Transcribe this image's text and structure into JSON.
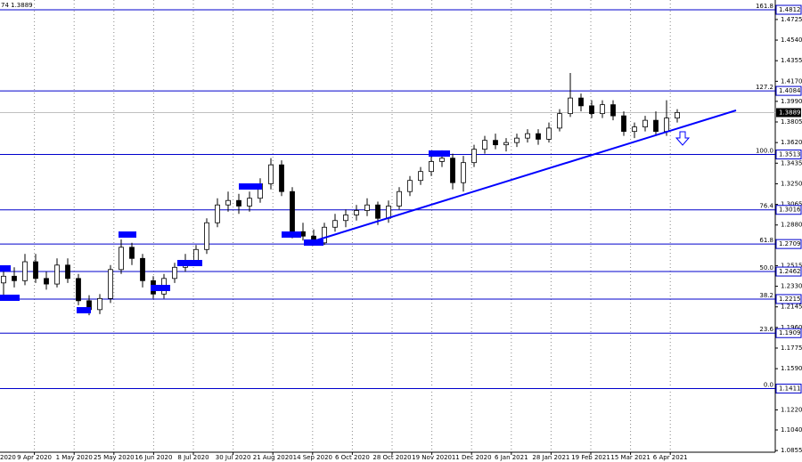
{
  "chart_data": {
    "type": "candlestick",
    "header": "74 1.3889",
    "x_labels": [
      "2020",
      "9 Apr 2020",
      "1 May 2020",
      "25 May 2020",
      "16 Jun 2020",
      "8 Jul 2020",
      "30 Jul 2020",
      "21 Aug 2020",
      "14 Sep 2020",
      "6 Oct 2020",
      "28 Oct 2020",
      "19 Nov 2020",
      "11 Dec 2020",
      "6 Jan 2021",
      "28 Jan 2021",
      "19 Feb 2021",
      "15 Mar 2021",
      "6 Apr 2021"
    ],
    "ylim": [
      1.084,
      1.49
    ],
    "yticks": [
      1.4725,
      {
        "value": 1.454,
        "label": "1.4540"
      },
      1.4355,
      {
        "value": 1.417,
        "label": "1.4170"
      },
      {
        "value": 1.399,
        "label": "1.3990"
      },
      1.3805,
      {
        "value": 1.362,
        "label": "1.3620"
      },
      1.3435,
      {
        "value": 1.325,
        "label": "1.3250"
      },
      1.3065,
      {
        "value": 1.288,
        "label": "1.2880"
      },
      1.2515,
      {
        "value": 1.233,
        "label": "1.2330"
      },
      1.2145,
      {
        "value": 1.196,
        "label": "1.1960"
      },
      1.1775,
      {
        "value": 1.159,
        "label": "1.1590"
      },
      {
        "value": 1.122,
        "label": "1.1220"
      },
      {
        "value": 1.104,
        "label": "1.1040"
      },
      1.0855
    ],
    "levels": [
      {
        "name": "161.8",
        "value": 1.4812
      },
      {
        "name": "127.2",
        "value": 1.4084
      },
      {
        "name": "100.0",
        "value": 1.3513
      },
      {
        "name": "76.4",
        "value": 1.3016
      },
      {
        "name": "61.8",
        "value": 1.2709
      },
      {
        "name": "50.0",
        "value": 1.2462
      },
      {
        "name": "38.2",
        "value": 1.2215
      },
      {
        "name": "23.6",
        "value": 1.1909
      },
      {
        "name": "0.0",
        "value": 1.1411
      }
    ],
    "last_price": 1.3889,
    "open": [
      1.236,
      1.242,
      1.238,
      1.255,
      1.24,
      1.235,
      1.252,
      1.24,
      1.22,
      1.212,
      1.222,
      1.248,
      1.268,
      1.258,
      1.238,
      1.226,
      1.24,
      1.25,
      1.256,
      1.266,
      1.29,
      1.306,
      1.31,
      1.305,
      1.312,
      1.325,
      1.342,
      1.318,
      1.282,
      1.278,
      1.272,
      1.286,
      1.292,
      1.297,
      1.301,
      1.306,
      1.294,
      1.305,
      1.318,
      1.328,
      1.336,
      1.345,
      1.348,
      1.326,
      1.344,
      1.356,
      1.364,
      1.36,
      1.362,
      1.366,
      1.37,
      1.365,
      1.375,
      1.388,
      1.402,
      1.395,
      1.388,
      1.396,
      1.386,
      1.372,
      1.376,
      1.382,
      1.372,
      1.384
    ],
    "high": [
      1.248,
      1.25,
      1.262,
      1.262,
      1.246,
      1.258,
      1.258,
      1.244,
      1.225,
      1.226,
      1.252,
      1.275,
      1.272,
      1.262,
      1.242,
      1.244,
      1.254,
      1.262,
      1.27,
      1.294,
      1.312,
      1.318,
      1.316,
      1.318,
      1.33,
      1.348,
      1.346,
      1.322,
      1.29,
      1.284,
      1.29,
      1.298,
      1.302,
      1.306,
      1.312,
      1.309,
      1.31,
      1.322,
      1.332,
      1.34,
      1.35,
      1.355,
      1.352,
      1.35,
      1.36,
      1.368,
      1.37,
      1.366,
      1.37,
      1.374,
      1.374,
      1.38,
      1.392,
      1.4245,
      1.406,
      1.4,
      1.4,
      1.4,
      1.39,
      1.38,
      1.386,
      1.39,
      1.4,
      1.392
    ],
    "low": [
      1.225,
      1.232,
      1.234,
      1.236,
      1.23,
      1.232,
      1.236,
      1.216,
      1.207,
      1.208,
      1.218,
      1.244,
      1.252,
      1.232,
      1.222,
      1.222,
      1.236,
      1.246,
      1.252,
      1.262,
      1.286,
      1.3,
      1.298,
      1.3,
      1.308,
      1.32,
      1.314,
      1.276,
      1.274,
      1.2695,
      1.27,
      1.282,
      1.286,
      1.292,
      1.296,
      1.288,
      1.29,
      1.302,
      1.314,
      1.324,
      1.332,
      1.34,
      1.32,
      1.318,
      1.34,
      1.352,
      1.356,
      1.354,
      1.358,
      1.362,
      1.36,
      1.362,
      1.372,
      1.385,
      1.39,
      1.384,
      1.384,
      1.382,
      1.368,
      1.366,
      1.372,
      1.368,
      1.368,
      1.38
    ],
    "close": [
      1.242,
      1.238,
      1.255,
      1.24,
      1.235,
      1.252,
      1.24,
      1.22,
      1.212,
      1.222,
      1.248,
      1.268,
      1.258,
      1.238,
      1.226,
      1.24,
      1.25,
      1.256,
      1.266,
      1.29,
      1.306,
      1.31,
      1.305,
      1.312,
      1.325,
      1.342,
      1.318,
      1.282,
      1.278,
      1.272,
      1.286,
      1.292,
      1.297,
      1.301,
      1.306,
      1.294,
      1.305,
      1.318,
      1.328,
      1.336,
      1.345,
      1.348,
      1.326,
      1.344,
      1.356,
      1.364,
      1.36,
      1.362,
      1.366,
      1.37,
      1.365,
      1.375,
      1.388,
      1.402,
      1.395,
      1.388,
      1.396,
      1.386,
      1.372,
      1.376,
      1.382,
      1.372,
      1.384,
      1.389
    ]
  }
}
